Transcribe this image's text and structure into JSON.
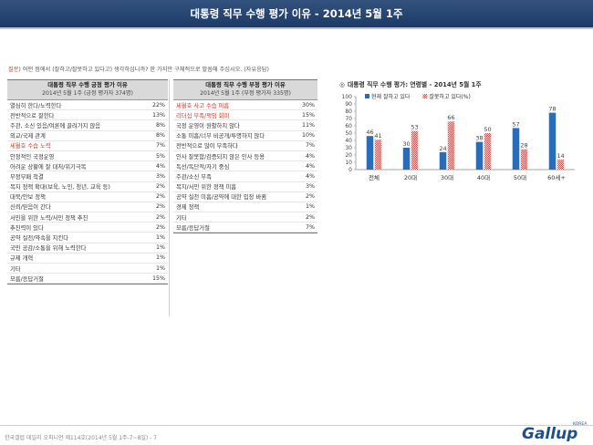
{
  "header": {
    "title": "대통령 직무 수행 평가 이유 - 2014년 5월 1주"
  },
  "question": {
    "prefix": "질문)",
    "text": "어떤 점에서 (잘하고/잘못하고 있다고) 생각하십니까? 한 가지만 구체적으로 말씀해 주십시오. (자유응답)"
  },
  "positive_table": {
    "title": "대통령 직무 수행 긍정 평가 이유",
    "subtitle": "2014년 5월 1주 (긍정 평가자 374명)",
    "rows": [
      {
        "label": "열심히 한다/노력한다",
        "pct": "22%"
      },
      {
        "label": "전반적으로 잘한다",
        "pct": "13%"
      },
      {
        "label": "주관, 소신 있음/여론에 끌려가지 않음",
        "pct": "8%"
      },
      {
        "label": "외교/국제 관계",
        "pct": "8%"
      },
      {
        "label": "세월호 수습 노력",
        "pct": "7%",
        "highlight": true
      },
      {
        "label": "안정적인 국정운영",
        "pct": "5%"
      },
      {
        "label": "어려운 상황에 잘 대처/위기극복",
        "pct": "4%"
      },
      {
        "label": "부정부패 척결",
        "pct": "3%"
      },
      {
        "label": "복지 정책 확대(보육, 노인, 청년, 교육 등)",
        "pct": "2%"
      },
      {
        "label": "대북/안보 정책",
        "pct": "2%"
      },
      {
        "label": "신뢰/믿음이 간다",
        "pct": "2%"
      },
      {
        "label": "서민을 위한 노력/서민 정책 추진",
        "pct": "2%"
      },
      {
        "label": "추진력이 있다",
        "pct": "2%"
      },
      {
        "label": "공약 실천/약속을 지킨다",
        "pct": "1%"
      },
      {
        "label": "국민 공감/소통을 위해 노력한다",
        "pct": "1%"
      },
      {
        "label": "규제 개혁",
        "pct": "1%"
      },
      {
        "label": "기타",
        "pct": "1%"
      },
      {
        "label": "모름/응답거절",
        "pct": "15%"
      }
    ]
  },
  "negative_table": {
    "title": "대통령 직무 수행 부정 평가 이유",
    "subtitle": "2014년 5월 1주 (부정 평가자 335명)",
    "rows": [
      {
        "label": "세월호 사고 수습 미흡",
        "pct": "30%",
        "highlight": true
      },
      {
        "label": "리더십 부족/책임 회피",
        "pct": "15%",
        "highlight": true
      },
      {
        "label": "국정 운영이 원활하지 않다",
        "pct": "11%"
      },
      {
        "label": "소통 미흡/너무 비공개/투명하지 않다",
        "pct": "10%"
      },
      {
        "label": "전반적으로 많이 부족하다",
        "pct": "7%"
      },
      {
        "label": "인사 잘못함/검증되지 않은 인사 등용",
        "pct": "4%"
      },
      {
        "label": "독선/독단적/자기 중심",
        "pct": "4%"
      },
      {
        "label": "주관/소신 부족",
        "pct": "4%"
      },
      {
        "label": "복지/서민 위한 정책 미흡",
        "pct": "3%"
      },
      {
        "label": "공약 실천 미흡/공약에 대한 입장 바뀜",
        "pct": "2%"
      },
      {
        "label": "경제 정책",
        "pct": "1%"
      },
      {
        "label": "기타",
        "pct": "2%"
      },
      {
        "label": "모름/응답거절",
        "pct": "7%"
      }
    ]
  },
  "chart_block": {
    "mark": "◎",
    "title": "대통령 직무 수행 평가: 연령별 - 2014년 5월 1주"
  },
  "chart_data": {
    "type": "bar",
    "categories": [
      "전체",
      "20대",
      "30대",
      "40대",
      "50대",
      "60세+"
    ],
    "series": [
      {
        "name": "현재 잘하고 있다",
        "values": [
          46,
          30,
          24,
          38,
          57,
          78
        ],
        "color": "#2b6cb8",
        "pattern": "solid"
      },
      {
        "name": "잘못하고 있다(%)",
        "values": [
          41,
          53,
          66,
          50,
          28,
          14
        ],
        "color": "#c0504d",
        "pattern": "checker"
      }
    ],
    "ylim": [
      0,
      100
    ],
    "yticks": [
      0,
      10,
      20,
      30,
      40,
      50,
      60,
      70,
      80,
      90,
      100
    ],
    "grid": false,
    "legend_position": "top"
  },
  "footer": {
    "source": "한국갤럽 데일리 오피니언 제114호(2014년 5월 1주-7~8일) - 7",
    "logo_text": "Gallup",
    "logo_sub": "KOREA"
  }
}
